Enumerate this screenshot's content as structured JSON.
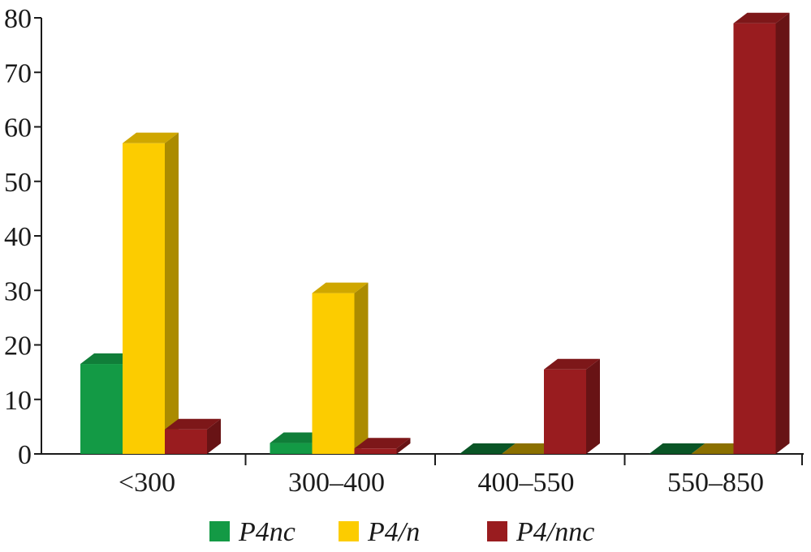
{
  "chart_data": {
    "type": "bar",
    "style": "3d-clustered",
    "categories": [
      "<300",
      "300–400",
      "400–550",
      "550–850"
    ],
    "series": [
      {
        "name": "P4nc",
        "color": "#139a45",
        "values": [
          16.5,
          2,
          0,
          0
        ]
      },
      {
        "name": "P4/n",
        "color": "#fccc00",
        "values": [
          57,
          29.5,
          0,
          0
        ]
      },
      {
        "name": "P4/nnc",
        "color": "#991c1f",
        "values": [
          4.5,
          1,
          15.5,
          79
        ]
      }
    ],
    "yticks": [
      "0",
      "10",
      "20",
      "30",
      "40",
      "50",
      "60",
      "70",
      "80"
    ],
    "ylim": [
      0,
      80
    ],
    "xlabel": "",
    "ylabel": "",
    "title": "",
    "grid": false,
    "legend_position": "bottom-center"
  }
}
